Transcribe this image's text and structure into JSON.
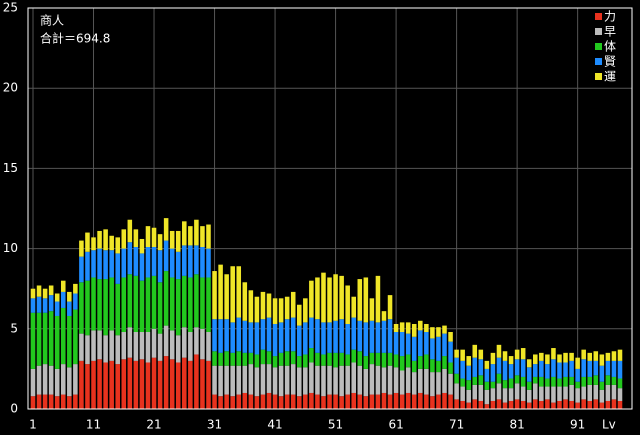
{
  "chart_data": {
    "type": "stacked_bar",
    "title": "商人",
    "annotation": "合計＝694.8",
    "x_label": "Lv",
    "categories": [
      "1",
      null,
      null,
      null,
      null,
      null,
      null,
      null,
      null,
      null,
      "11",
      null,
      null,
      null,
      null,
      null,
      null,
      null,
      null,
      null,
      "21",
      null,
      null,
      null,
      null,
      null,
      null,
      null,
      null,
      null,
      "31",
      null,
      null,
      null,
      null,
      null,
      null,
      null,
      null,
      null,
      "41",
      null,
      null,
      null,
      null,
      null,
      null,
      null,
      null,
      null,
      "51",
      null,
      null,
      null,
      null,
      null,
      null,
      null,
      null,
      null,
      "61",
      null,
      null,
      null,
      null,
      null,
      null,
      null,
      null,
      null,
      "71",
      null,
      null,
      null,
      null,
      null,
      null,
      null,
      null,
      null,
      "81",
      null,
      null,
      null,
      null,
      null,
      null,
      null,
      null,
      null,
      "91",
      null,
      null,
      null,
      null,
      null,
      null,
      null
    ],
    "ylim": [
      0,
      25
    ],
    "yticks": [
      0,
      5,
      10,
      15,
      20,
      25
    ],
    "grid": true,
    "legend": "top-right",
    "series": [
      {
        "name": "力",
        "color": "#e8321e",
        "values": [
          0.8,
          0.9,
          0.9,
          0.9,
          0.8,
          0.9,
          0.8,
          0.9,
          3.0,
          2.8,
          3.0,
          3.1,
          2.9,
          3.0,
          2.8,
          3.1,
          3.2,
          3.0,
          3.1,
          2.9,
          3.2,
          3.0,
          3.3,
          3.1,
          2.9,
          3.2,
          3.0,
          3.4,
          3.1,
          3.0,
          0.9,
          0.8,
          0.9,
          0.8,
          0.9,
          1.0,
          0.9,
          0.8,
          0.9,
          1.0,
          0.9,
          0.8,
          0.9,
          0.9,
          0.8,
          0.9,
          1.0,
          0.9,
          0.8,
          0.9,
          0.9,
          0.8,
          0.9,
          1.0,
          0.9,
          0.8,
          0.9,
          0.9,
          1.0,
          0.9,
          1.0,
          0.9,
          1.0,
          0.9,
          1.0,
          0.9,
          0.8,
          0.9,
          1.0,
          0.9,
          0.6,
          0.5,
          0.4,
          0.6,
          0.5,
          0.3,
          0.5,
          0.6,
          0.4,
          0.5,
          0.6,
          0.5,
          0.4,
          0.6,
          0.5,
          0.6,
          0.4,
          0.5,
          0.6,
          0.5,
          0.4,
          0.6,
          0.5,
          0.6,
          0.4,
          0.5,
          0.6,
          0.5
        ]
      },
      {
        "name": "早",
        "color": "#bcbcbc",
        "values": [
          1.7,
          1.8,
          1.9,
          1.8,
          1.7,
          1.9,
          1.8,
          1.9,
          1.7,
          1.8,
          1.9,
          1.8,
          1.7,
          1.9,
          1.8,
          1.7,
          1.9,
          1.8,
          1.7,
          1.9,
          1.8,
          1.7,
          1.9,
          1.8,
          1.7,
          1.9,
          1.8,
          1.7,
          1.9,
          1.8,
          1.8,
          1.9,
          1.8,
          1.9,
          1.8,
          1.7,
          1.9,
          1.8,
          1.9,
          1.8,
          1.7,
          1.9,
          1.8,
          1.9,
          1.8,
          1.7,
          1.9,
          1.8,
          1.9,
          1.8,
          1.7,
          1.9,
          1.8,
          1.9,
          1.8,
          1.7,
          1.9,
          1.8,
          1.6,
          1.8,
          1.6,
          1.5,
          1.6,
          1.4,
          1.5,
          1.6,
          1.5,
          1.4,
          1.5,
          1.3,
          1.0,
          0.9,
          0.8,
          0.9,
          1.0,
          0.9,
          0.8,
          1.0,
          0.9,
          0.8,
          1.0,
          0.9,
          0.8,
          1.0,
          0.9,
          0.8,
          1.0,
          0.9,
          0.8,
          1.0,
          0.9,
          0.8,
          1.0,
          0.9,
          0.8,
          1.0,
          0.9,
          0.8
        ]
      },
      {
        "name": "体",
        "color": "#22c81e",
        "values": [
          3.5,
          3.3,
          3.2,
          3.4,
          3.3,
          3.5,
          3.2,
          3.4,
          3.2,
          3.4,
          3.3,
          3.2,
          3.5,
          3.3,
          3.2,
          3.4,
          3.3,
          3.5,
          3.2,
          3.4,
          3.3,
          3.2,
          3.4,
          3.3,
          3.5,
          3.2,
          3.4,
          3.3,
          3.2,
          3.4,
          0.9,
          0.8,
          0.9,
          0.8,
          0.9,
          0.8,
          0.7,
          0.8,
          0.9,
          0.8,
          0.7,
          0.8,
          0.9,
          0.8,
          0.7,
          0.8,
          0.9,
          0.8,
          0.7,
          0.8,
          0.9,
          0.8,
          0.7,
          0.8,
          0.9,
          0.8,
          0.7,
          0.8,
          0.9,
          0.8,
          0.8,
          0.9,
          0.8,
          0.7,
          0.8,
          0.9,
          0.8,
          0.7,
          0.8,
          0.7,
          0.6,
          0.5,
          0.6,
          0.5,
          0.6,
          0.5,
          0.4,
          0.6,
          0.5,
          0.6,
          0.5,
          0.6,
          0.5,
          0.4,
          0.6,
          0.5,
          0.6,
          0.5,
          0.6,
          0.5,
          0.4,
          0.6,
          0.5,
          0.6,
          0.5,
          0.6,
          0.5,
          0.6
        ]
      },
      {
        "name": "賢",
        "color": "#1e8cff",
        "values": [
          0.9,
          1.0,
          0.9,
          1.0,
          0.9,
          1.0,
          0.9,
          1.0,
          1.6,
          1.8,
          1.7,
          1.9,
          1.8,
          1.7,
          1.9,
          1.8,
          2.0,
          1.8,
          1.7,
          1.9,
          1.8,
          2.0,
          1.9,
          1.8,
          1.7,
          1.9,
          2.0,
          1.8,
          1.9,
          1.8,
          2.0,
          2.1,
          2.0,
          1.9,
          2.1,
          2.0,
          1.9,
          2.0,
          1.9,
          2.1,
          2.0,
          1.9,
          2.0,
          2.1,
          1.9,
          2.0,
          1.9,
          2.1,
          2.0,
          1.9,
          2.0,
          2.1,
          1.9,
          2.0,
          1.9,
          2.1,
          2.0,
          1.9,
          2.0,
          2.1,
          1.4,
          1.5,
          1.3,
          1.5,
          1.6,
          1.4,
          1.3,
          1.5,
          1.4,
          1.3,
          1.0,
          1.1,
          0.9,
          1.2,
          1.0,
          0.8,
          1.1,
          1.0,
          1.2,
          0.9,
          1.0,
          1.1,
          0.9,
          0.8,
          1.0,
          0.9,
          1.1,
          1.0,
          0.9,
          1.0,
          0.8,
          1.1,
          1.0,
          0.9,
          1.0,
          0.9,
          1.0,
          1.1
        ]
      },
      {
        "name": "運",
        "color": "#f0e628",
        "values": [
          0.6,
          0.7,
          0.6,
          0.6,
          0.5,
          0.7,
          0.6,
          0.6,
          1.0,
          1.2,
          0.8,
          1.1,
          1.3,
          0.9,
          1.0,
          1.2,
          1.4,
          1.1,
          0.9,
          1.3,
          1.2,
          1.0,
          1.4,
          1.1,
          1.3,
          1.5,
          1.2,
          1.6,
          1.3,
          1.5,
          3.0,
          3.4,
          2.8,
          3.5,
          3.2,
          2.4,
          2.0,
          1.6,
          1.7,
          1.5,
          1.6,
          1.5,
          1.4,
          1.6,
          1.3,
          1.5,
          2.3,
          2.6,
          3.1,
          2.8,
          2.9,
          2.7,
          2.4,
          1.3,
          2.6,
          2.8,
          1.4,
          2.9,
          0.6,
          1.5,
          0.5,
          0.6,
          0.7,
          0.8,
          0.6,
          0.5,
          0.7,
          0.6,
          0.5,
          0.6,
          0.5,
          0.7,
          0.6,
          0.8,
          0.6,
          0.5,
          0.7,
          0.8,
          0.6,
          0.5,
          0.6,
          0.7,
          0.5,
          0.6,
          0.5,
          0.6,
          0.7,
          0.5,
          0.6,
          0.5,
          0.7,
          0.6,
          0.5,
          0.6,
          0.7,
          0.5,
          0.6,
          0.7
        ]
      }
    ]
  }
}
